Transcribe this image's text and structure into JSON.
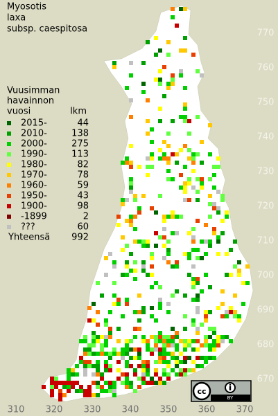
{
  "title": [
    "Myosotis",
    "laxa",
    "subsp. caespitosa"
  ],
  "legend": {
    "header": [
      "Vuusimman",
      "havainnon",
      "vuosi"
    ],
    "count_header": "lkm",
    "entries": [
      {
        "label": "2015-",
        "count": 44,
        "color": "#006400"
      },
      {
        "label": "2010-",
        "count": 138,
        "color": "#00a000"
      },
      {
        "label": "2000-",
        "count": 275,
        "color": "#00d000"
      },
      {
        "label": "1990-",
        "count": 113,
        "color": "#60ff40"
      },
      {
        "label": "1980-",
        "count": 82,
        "color": "#ffff00"
      },
      {
        "label": "1970-",
        "count": 78,
        "color": "#ffc800"
      },
      {
        "label": "1960-",
        "count": 59,
        "color": "#ff8000"
      },
      {
        "label": "1950-",
        "count": 43,
        "color": "#e84000"
      },
      {
        "label": "1900-",
        "count": 98,
        "color": "#c80000"
      },
      {
        "label": "-1899",
        "count": 2,
        "color": "#800000"
      },
      {
        "label": "???",
        "count": 60,
        "color": "#c0c0c0"
      }
    ],
    "total_label": "Yhteensä",
    "total": 992
  },
  "map": {
    "x_labels": [
      310,
      320,
      330,
      340,
      350,
      360,
      370
    ],
    "y_labels": [
      770,
      760,
      750,
      740,
      730,
      720,
      710,
      700,
      690,
      680,
      670
    ]
  },
  "license": {
    "badge": "BY"
  }
}
